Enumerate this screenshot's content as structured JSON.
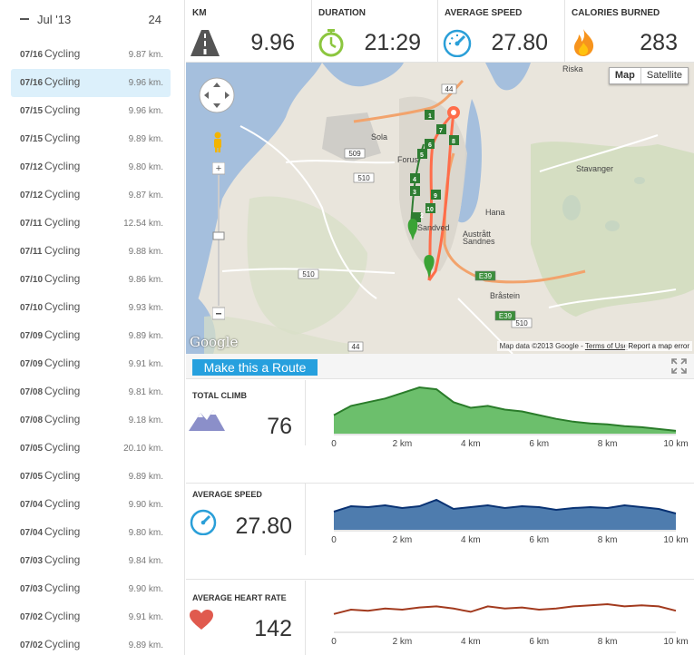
{
  "sidebar": {
    "month": "Jul '13",
    "count": "24",
    "activities": [
      {
        "date": "07/16",
        "type": "Cycling",
        "distance": "9.87 km.",
        "selected": false
      },
      {
        "date": "07/16",
        "type": "Cycling",
        "distance": "9.96 km.",
        "selected": true
      },
      {
        "date": "07/15",
        "type": "Cycling",
        "distance": "9.96 km.",
        "selected": false
      },
      {
        "date": "07/15",
        "type": "Cycling",
        "distance": "9.89 km.",
        "selected": false
      },
      {
        "date": "07/12",
        "type": "Cycling",
        "distance": "9.80 km.",
        "selected": false
      },
      {
        "date": "07/12",
        "type": "Cycling",
        "distance": "9.87 km.",
        "selected": false
      },
      {
        "date": "07/11",
        "type": "Cycling",
        "distance": "12.54 km.",
        "selected": false
      },
      {
        "date": "07/11",
        "type": "Cycling",
        "distance": "9.88 km.",
        "selected": false
      },
      {
        "date": "07/10",
        "type": "Cycling",
        "distance": "9.86 km.",
        "selected": false
      },
      {
        "date": "07/10",
        "type": "Cycling",
        "distance": "9.93 km.",
        "selected": false
      },
      {
        "date": "07/09",
        "type": "Cycling",
        "distance": "9.89 km.",
        "selected": false
      },
      {
        "date": "07/09",
        "type": "Cycling",
        "distance": "9.91 km.",
        "selected": false
      },
      {
        "date": "07/08",
        "type": "Cycling",
        "distance": "9.81 km.",
        "selected": false
      },
      {
        "date": "07/08",
        "type": "Cycling",
        "distance": "9.18 km.",
        "selected": false
      },
      {
        "date": "07/05",
        "type": "Cycling",
        "distance": "20.10 km.",
        "selected": false
      },
      {
        "date": "07/05",
        "type": "Cycling",
        "distance": "9.89 km.",
        "selected": false
      },
      {
        "date": "07/04",
        "type": "Cycling",
        "distance": "9.90 km.",
        "selected": false
      },
      {
        "date": "07/04",
        "type": "Cycling",
        "distance": "9.80 km.",
        "selected": false
      },
      {
        "date": "07/03",
        "type": "Cycling",
        "distance": "9.84 km.",
        "selected": false
      },
      {
        "date": "07/03",
        "type": "Cycling",
        "distance": "9.90 km.",
        "selected": false
      },
      {
        "date": "07/02",
        "type": "Cycling",
        "distance": "9.91 km.",
        "selected": false
      },
      {
        "date": "07/02",
        "type": "Cycling",
        "distance": "9.89 km.",
        "selected": false
      }
    ]
  },
  "stats": {
    "km": {
      "label": "KM",
      "value": "9.96",
      "icon": "road-icon"
    },
    "duration": {
      "label": "DURATION",
      "value": "21:29",
      "icon": "stopwatch-icon"
    },
    "speed": {
      "label": "AVERAGE SPEED",
      "value": "27.80",
      "icon": "speedometer-icon"
    },
    "calories": {
      "label": "CALORIES BURNED",
      "value": "283",
      "icon": "flame-icon"
    }
  },
  "map": {
    "btn_map": "Map",
    "btn_satellite": "Satellite",
    "logo": "Google",
    "attribution": "Map data ©2013 Google - ",
    "terms": "Terms of Use",
    "report": "Report a map error",
    "places": [
      "Sola",
      "Sandnes",
      "Hana",
      "Austrått",
      "Bråstein",
      "Riska",
      "Sandved",
      "Stavanger",
      "Forus"
    ],
    "road_numbers": [
      "44",
      "509",
      "510",
      "510",
      "510",
      "44",
      "E39",
      "E39"
    ],
    "markers": [
      "1",
      "2",
      "3",
      "4",
      "5",
      "6",
      "7",
      "8",
      "9",
      "10"
    ]
  },
  "route_bar": {
    "make_route": "Make this a Route"
  },
  "colors": {
    "climb": "#5cb85c",
    "speed": "#3b6ea5",
    "heart": "#a23a1e",
    "accent": "#26a0de"
  },
  "charts": {
    "climb": {
      "label": "TOTAL CLIMB",
      "value": "76"
    },
    "speed": {
      "label": "AVERAGE SPEED",
      "value": "27.80"
    },
    "heart": {
      "label": "AVERAGE HEART RATE",
      "value": "142"
    }
  },
  "chart_data": [
    {
      "type": "area",
      "x": [
        0,
        0.5,
        1,
        1.5,
        2,
        2.5,
        3,
        3.5,
        4,
        4.5,
        5,
        5.5,
        6,
        6.5,
        7,
        7.5,
        8,
        8.5,
        9,
        9.5,
        10
      ],
      "series": [
        {
          "values": [
            20,
            30,
            34,
            38,
            44,
            50,
            48,
            34,
            28,
            30,
            26,
            24,
            20,
            16,
            13,
            11,
            10,
            8,
            7,
            5,
            3
          ]
        }
      ],
      "x_ticks": [
        "0",
        "2 km",
        "4 km",
        "6 km",
        "8 km",
        "10 km"
      ],
      "xlim": [
        0,
        10
      ],
      "ylim": [
        0,
        52
      ],
      "grid": false
    },
    {
      "type": "area",
      "x": [
        0,
        0.5,
        1,
        1.5,
        2,
        2.5,
        3,
        3.5,
        4,
        4.5,
        5,
        5.5,
        6,
        6.5,
        7,
        7.5,
        8,
        8.5,
        9,
        9.5,
        10
      ],
      "series": [
        {
          "values": [
            20,
            26,
            25,
            27,
            24,
            26,
            33,
            23,
            25,
            27,
            24,
            26,
            25,
            22,
            24,
            25,
            24,
            27,
            25,
            23,
            18
          ]
        }
      ],
      "x_ticks": [
        "0",
        "2 km",
        "4 km",
        "6 km",
        "8 km",
        "10 km"
      ],
      "xlim": [
        0,
        10
      ],
      "ylim": [
        0,
        40
      ],
      "grid": false
    },
    {
      "type": "line",
      "x": [
        0,
        0.5,
        1,
        1.5,
        2,
        2.5,
        3,
        3.5,
        4,
        4.5,
        5,
        5.5,
        6,
        6.5,
        7,
        7.5,
        8,
        8.5,
        9,
        9.5,
        10
      ],
      "series": [
        {
          "values": [
            136,
            140,
            139,
            141,
            140,
            142,
            143,
            141,
            138,
            143,
            141,
            142,
            140,
            141,
            143,
            144,
            145,
            143,
            144,
            143,
            139
          ]
        }
      ],
      "x_ticks": [
        "0",
        "2 km",
        "4 km",
        "6 km",
        "8 km",
        "10 km"
      ],
      "xlim": [
        0,
        10
      ],
      "ylim": [
        120,
        160
      ],
      "grid": false
    }
  ]
}
